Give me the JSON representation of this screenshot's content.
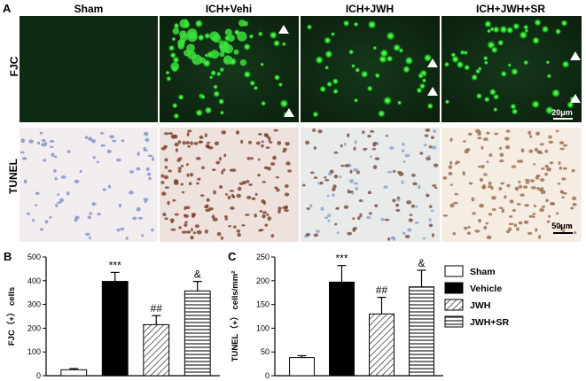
{
  "panel_labels": {
    "a": "A",
    "b": "B",
    "c": "C"
  },
  "columns": [
    "Sham",
    "ICH+Vehi",
    "ICH+JWH",
    "ICH+JWH+SR"
  ],
  "rows": [
    "FJC",
    "TUNEL"
  ],
  "scale_bars": {
    "fjc": "20μm",
    "tunel": "50μm"
  },
  "colors": {
    "fjc_green": "#1ec81e",
    "tunel_bg": "#f4ece4",
    "tunel_nuclei": "#7a3b24",
    "sham_nuclei": "#7f8fc8"
  },
  "chart_data": [
    {
      "type": "bar",
      "panel": "B",
      "categories": [
        "Sham",
        "Vehicle",
        "JWH",
        "JWH+SR"
      ],
      "values": [
        25,
        397,
        215,
        357
      ],
      "errors": [
        5,
        38,
        38,
        40
      ],
      "annotations": [
        "",
        "***",
        "##",
        "&"
      ],
      "ylabel": "FJC（+） cells",
      "ylim": [
        0,
        500
      ],
      "yticks": [
        "0",
        "100",
        "200",
        "300",
        "400",
        "500"
      ]
    },
    {
      "type": "bar",
      "panel": "C",
      "categories": [
        "Sham",
        "Vehicle",
        "JWH",
        "JWH+SR"
      ],
      "values": [
        38,
        197,
        130,
        187
      ],
      "errors": [
        4,
        35,
        35,
        35
      ],
      "annotations": [
        "",
        "***",
        "##",
        "&"
      ],
      "ylabel": "TUNEL（+） cells/mm²",
      "ylim": [
        0,
        250
      ],
      "yticks": [
        "0",
        "50",
        "100",
        "150",
        "200",
        "250"
      ]
    }
  ],
  "legend": [
    {
      "label": "Sham",
      "fill": "white"
    },
    {
      "label": "Vehicle",
      "fill": "black"
    },
    {
      "label": "JWH",
      "fill": "diagonal"
    },
    {
      "label": "JWH+SR",
      "fill": "horizontal"
    }
  ]
}
